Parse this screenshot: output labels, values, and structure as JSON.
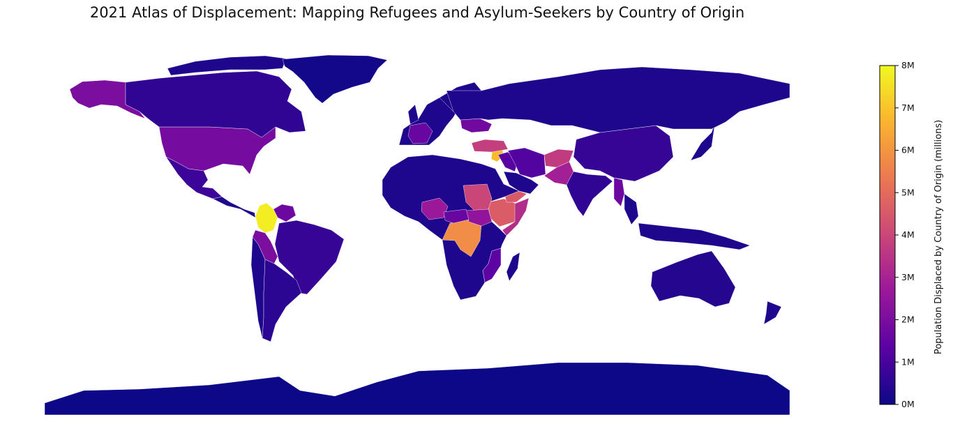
{
  "title": "2021 Atlas of Displacement: Mapping Refugees and Asylum-Seekers by Country of Origin",
  "colorbar": {
    "label": "Population Displaced by Country of Origin (millions)",
    "min": 0,
    "max": 8,
    "ticks": [
      {
        "value": 0,
        "label": "0M"
      },
      {
        "value": 1,
        "label": "1M"
      },
      {
        "value": 2,
        "label": "2M"
      },
      {
        "value": 3,
        "label": "3M"
      },
      {
        "value": 4,
        "label": "4M"
      },
      {
        "value": 5,
        "label": "5M"
      },
      {
        "value": 6,
        "label": "6M"
      },
      {
        "value": 7,
        "label": "7M"
      },
      {
        "value": 8,
        "label": "8M"
      }
    ],
    "colormap": "plasma",
    "stops": [
      "#0d0887",
      "#5b02a3",
      "#9a179b",
      "#cb4678",
      "#eb7852",
      "#fbb32f",
      "#f0f921"
    ]
  },
  "chart_data": {
    "type": "choropleth",
    "projection": "equirectangular",
    "background": "#ffffff",
    "regions": [
      {
        "name": "Colombia",
        "value": 7.8
      },
      {
        "name": "Syria",
        "value": 6.8
      },
      {
        "name": "DR Congo",
        "value": 5.8
      },
      {
        "name": "Ethiopia",
        "value": 4.6
      },
      {
        "name": "Yemen",
        "value": 4.5
      },
      {
        "name": "Sudan",
        "value": 4.0
      },
      {
        "name": "Turkey",
        "value": 3.8
      },
      {
        "name": "Afghanistan",
        "value": 3.7
      },
      {
        "name": "Somalia",
        "value": 3.3
      },
      {
        "name": "Pakistan",
        "value": 2.9
      },
      {
        "name": "Nigeria",
        "value": 2.7
      },
      {
        "name": "South Sudan",
        "value": 2.5
      },
      {
        "name": "Alaska",
        "value": 2.0
      },
      {
        "name": "USA",
        "value": 1.9
      },
      {
        "name": "Peru",
        "value": 2.0
      },
      {
        "name": "Venezuela",
        "value": 1.7
      },
      {
        "name": "Ukraine",
        "value": 1.8
      },
      {
        "name": "France",
        "value": 1.6
      },
      {
        "name": "Myanmar",
        "value": 1.7
      },
      {
        "name": "Central African Republic",
        "value": 1.6
      },
      {
        "name": "Mozambique",
        "value": 1.4
      },
      {
        "name": "Iraq",
        "value": 1.3
      },
      {
        "name": "Iran",
        "value": 1.2
      },
      {
        "name": "Canada",
        "value": 0.6
      },
      {
        "name": "Mexico",
        "value": 0.8
      },
      {
        "name": "Brazil",
        "value": 0.7
      },
      {
        "name": "Argentina",
        "value": 0.5
      },
      {
        "name": "China",
        "value": 0.7
      },
      {
        "name": "India",
        "value": 0.6
      },
      {
        "name": "Russia",
        "value": 0.3
      },
      {
        "name": "Australia",
        "value": 0.4
      },
      {
        "name": "Greenland",
        "value": 0.1
      },
      {
        "name": "Antarctica",
        "value": 0.0
      }
    ]
  }
}
